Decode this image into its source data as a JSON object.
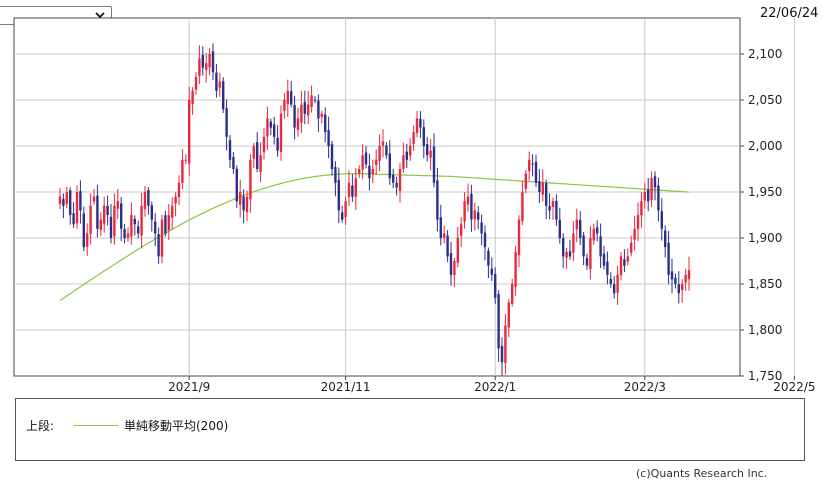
{
  "header": {
    "period_select_value": "",
    "date": "22/06/24",
    "chevron_icon": "chevron-down-icon"
  },
  "legend": {
    "section_label": "上段:",
    "ma_label": "単純移動平均(200)",
    "ma_color": "#8cc63f"
  },
  "credit": "(c)Quants Research Inc.",
  "colors": {
    "up": "#e8283c",
    "down": "#2a2f8a",
    "grid": "#c8c8c8",
    "ma": "#8cc63f"
  },
  "chart_data": {
    "type": "candlestick",
    "title": "",
    "xlabel": "",
    "ylabel": "",
    "ylim": [
      1750,
      2130
    ],
    "y_ticks": [
      2100,
      2050,
      2000,
      1950,
      1900,
      1850,
      1800,
      1750
    ],
    "y_tick_labels": [
      "2,100",
      "2,050",
      "2,000",
      "1,950",
      "1,900",
      "1,850",
      "1,800",
      "1,750"
    ],
    "x_ticks": [
      "2021/9",
      "2021/11",
      "2022/1",
      "2022/3",
      "2022/5"
    ],
    "x_tick_index": [
      38,
      84,
      128,
      172,
      216
    ],
    "grid": true,
    "legend_position": "bottom",
    "close_series": [
      1945,
      1935,
      1950,
      1925,
      1915,
      1950,
      1930,
      1890,
      1905,
      1935,
      1945,
      1910,
      1920,
      1935,
      1925,
      1900,
      1935,
      1940,
      1910,
      1900,
      1905,
      1925,
      1915,
      1905,
      1935,
      1950,
      1935,
      1920,
      1905,
      1880,
      1920,
      1905,
      1925,
      1935,
      1945,
      1960,
      1985,
      1985,
      2050,
      2060,
      2075,
      2095,
      2085,
      2090,
      2100,
      2080,
      2060,
      2070,
      2040,
      2010,
      1985,
      1975,
      1940,
      1950,
      1930,
      1945,
      1985,
      2000,
      1975,
      1990,
      2010,
      2030,
      2020,
      2010,
      1995,
      2035,
      2050,
      2060,
      2045,
      2020,
      2030,
      2045,
      2035,
      2045,
      2055,
      2050,
      2030,
      2035,
      2015,
      2000,
      1975,
      1960,
      1930,
      1920,
      1940,
      1960,
      1945,
      1965,
      1975,
      1990,
      1980,
      1965,
      1975,
      1985,
      2000,
      2005,
      1990,
      1965,
      1960,
      1955,
      1975,
      1990,
      1985,
      2000,
      2015,
      2030,
      2020,
      2000,
      1990,
      1995,
      1960,
      1920,
      1900,
      1905,
      1880,
      1860,
      1875,
      1900,
      1915,
      1940,
      1945,
      1920,
      1930,
      1920,
      1905,
      1890,
      1870,
      1860,
      1835,
      1780,
      1765,
      1805,
      1830,
      1850,
      1885,
      1920,
      1950,
      1970,
      1985,
      1980,
      1960,
      1950,
      1960,
      1935,
      1930,
      1940,
      1920,
      1900,
      1880,
      1885,
      1880,
      1905,
      1920,
      1900,
      1880,
      1870,
      1900,
      1910,
      1905,
      1880,
      1870,
      1860,
      1850,
      1840,
      1860,
      1880,
      1870,
      1880,
      1895,
      1910,
      1925,
      1940,
      1950,
      1940,
      1965,
      1955,
      1930,
      1910,
      1890,
      1860,
      1855,
      1850,
      1840,
      1850,
      1860,
      1865
    ]
  }
}
